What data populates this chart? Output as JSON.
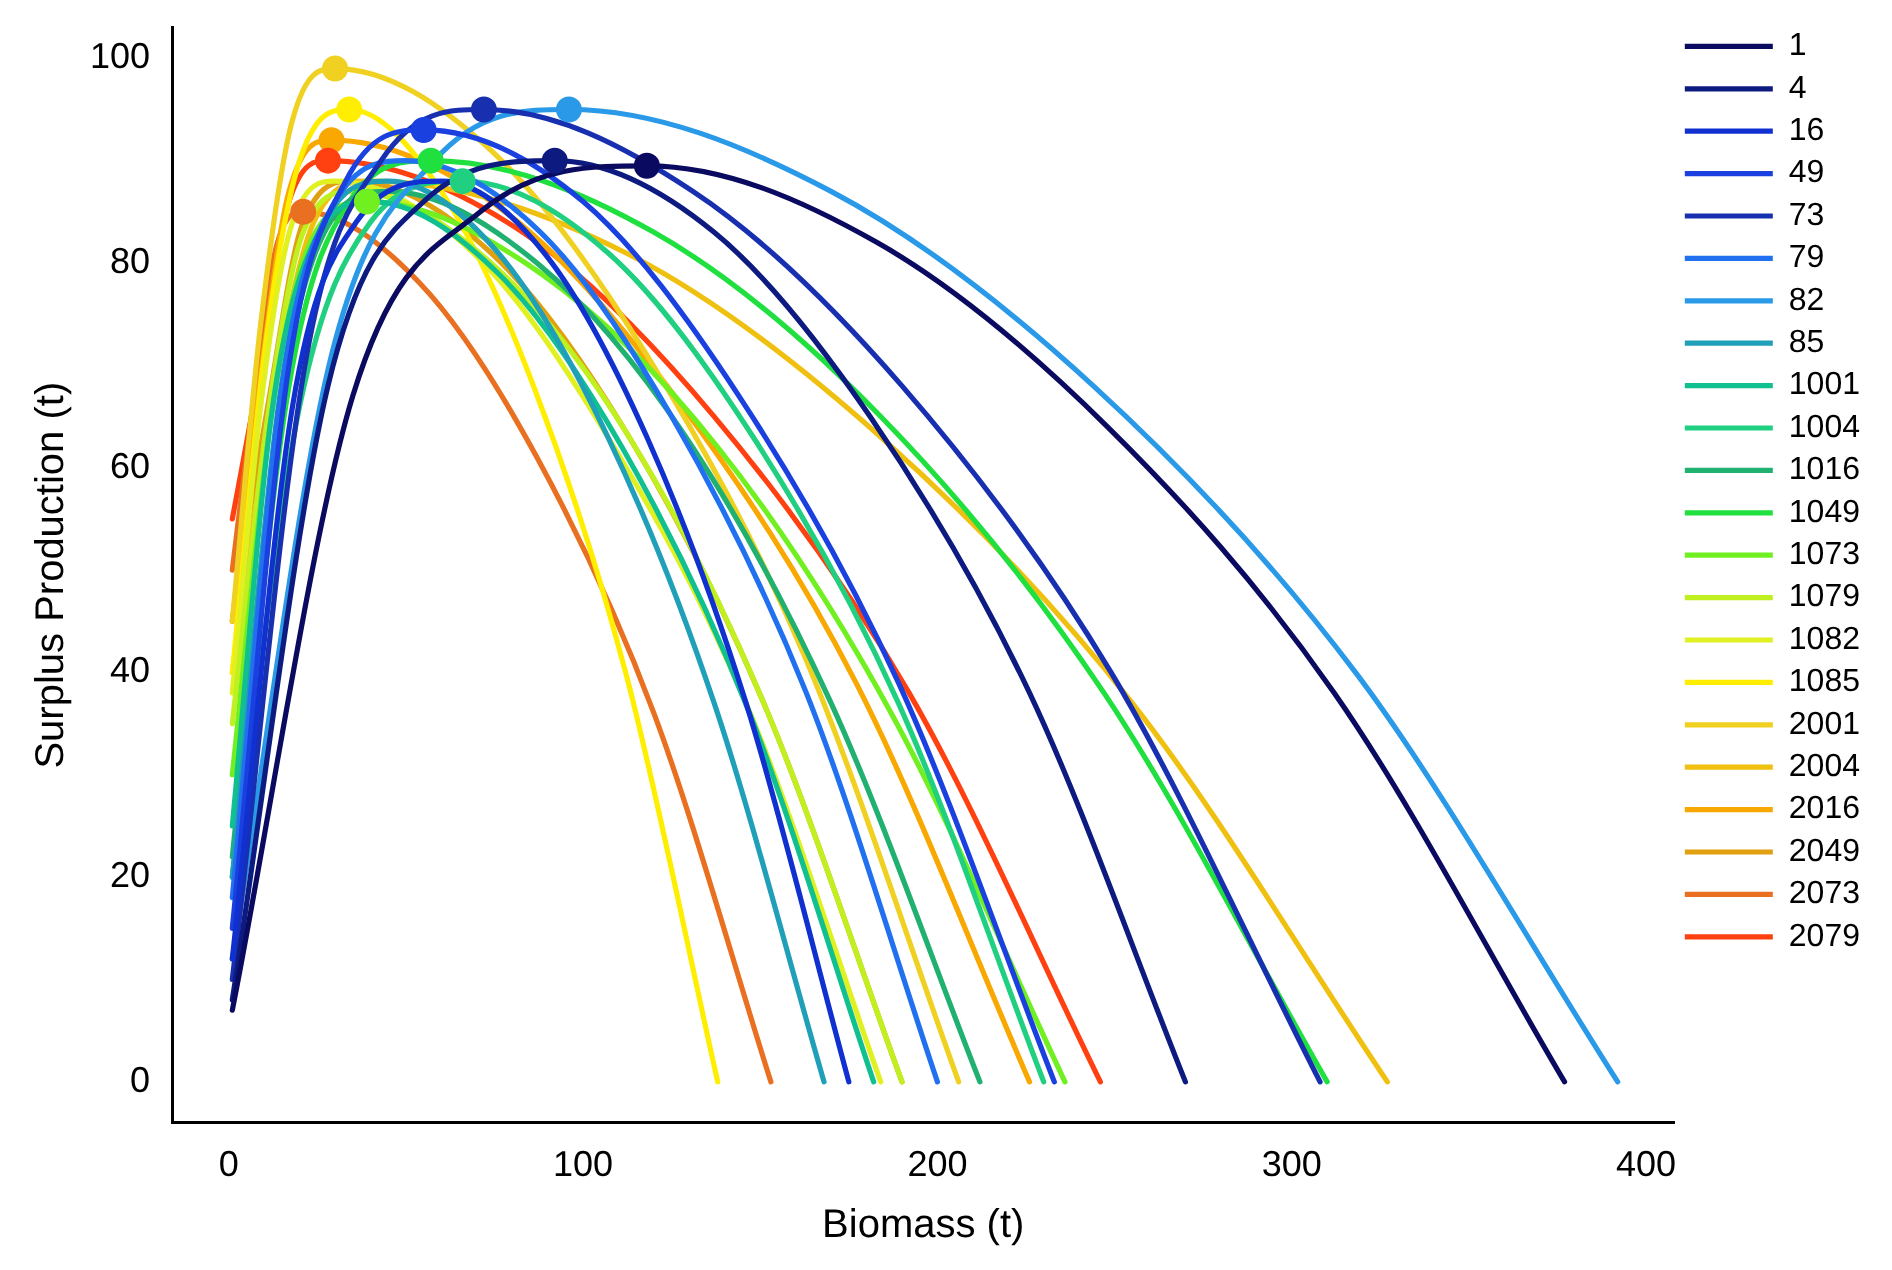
{
  "chart_data": {
    "type": "line",
    "xlabel": "Biomass (t)",
    "ylabel": "Surplus Production (t)",
    "xlim": [
      -16,
      408
    ],
    "ylim": [
      -4,
      103
    ],
    "xticks": [
      0,
      100,
      200,
      300,
      400
    ],
    "yticks": [
      0,
      20,
      40,
      60,
      80,
      100
    ],
    "grid": false,
    "legend": "right",
    "marker": "none",
    "line_style": "solid",
    "series": [
      {
        "name": "1",
        "color": "#0a0a60",
        "x": [
          1,
          35,
          71,
          118,
          183,
          248,
          312,
          377
        ],
        "values": [
          7,
          67,
          85,
          89.5,
          82,
          64,
          38,
          0
        ]
      },
      {
        "name": "4",
        "color": "#0d1a80",
        "x": [
          1,
          28,
          55,
          92,
          137,
          181,
          226,
          270
        ],
        "values": [
          8,
          68,
          86,
          90,
          83,
          65,
          38,
          0
        ]
      },
      {
        "name": "16",
        "color": "#1030d0",
        "x": [
          1,
          18,
          36,
          60,
          89,
          118,
          146,
          175
        ],
        "values": [
          12,
          66,
          84,
          88,
          81,
          63,
          37,
          0
        ]
      },
      {
        "name": "49",
        "color": "#1a40e0",
        "x": [
          1,
          17,
          33,
          55,
          100,
          144,
          189,
          233
        ],
        "values": [
          15,
          70,
          88,
          93,
          86,
          67,
          39,
          0
        ]
      },
      {
        "name": "73",
        "color": "#1830b0",
        "x": [
          1,
          22,
          43,
          72,
          131,
          190,
          249,
          308
        ],
        "values": [
          10,
          71,
          90,
          95,
          87,
          68,
          40,
          0
        ]
      },
      {
        "name": "79",
        "color": "#2070f0",
        "x": [
          1,
          15,
          30,
          50,
          88,
          125,
          163,
          200
        ],
        "values": [
          18,
          68,
          86,
          90,
          83,
          65,
          38,
          0
        ]
      },
      {
        "name": "82",
        "color": "#2a9ae8",
        "x": [
          1,
          29,
          58,
          96,
          170,
          244,
          318,
          392
        ],
        "values": [
          12,
          71,
          90,
          95,
          87,
          68,
          40,
          0
        ]
      },
      {
        "name": "85",
        "color": "#20a0b8",
        "x": [
          1,
          14,
          27,
          45,
          76,
          107,
          137,
          168
        ],
        "values": [
          20,
          66,
          84,
          88,
          81,
          63,
          37,
          0
        ]
      },
      {
        "name": "1001",
        "color": "#10c090",
        "x": [
          1,
          12,
          24,
          40,
          76,
          111,
          147,
          182
        ],
        "values": [
          25,
          65,
          82,
          86,
          79,
          62,
          36,
          0
        ]
      },
      {
        "name": "1004",
        "color": "#20d080",
        "x": [
          1,
          20,
          40,
          66,
          107,
          148,
          189,
          230
        ],
        "values": [
          20,
          66,
          84,
          88,
          81,
          63,
          37,
          0
        ]
      },
      {
        "name": "1016",
        "color": "#20b070",
        "x": [
          1,
          14,
          27,
          45,
          87,
          129,
          170,
          212
        ],
        "values": [
          22,
          65,
          83,
          87,
          80,
          63,
          37,
          0
        ]
      },
      {
        "name": "1049",
        "color": "#20e040",
        "x": [
          1,
          17,
          34,
          57,
          120,
          184,
          247,
          310
        ],
        "values": [
          20,
          68,
          86,
          90,
          83,
          65,
          38,
          0
        ]
      },
      {
        "name": "1073",
        "color": "#70f020",
        "x": [
          1,
          12,
          23,
          39,
          88,
          138,
          187,
          236
        ],
        "values": [
          30,
          65,
          82,
          86,
          79,
          62,
          36,
          0
        ]
      },
      {
        "name": "1079",
        "color": "#c0f020",
        "x": [
          1,
          11,
          21,
          35,
          74,
          113,
          151,
          190
        ],
        "values": [
          35,
          65,
          83,
          87,
          80,
          63,
          37,
          0
        ]
      },
      {
        "name": "1082",
        "color": "#e0f020",
        "x": [
          1,
          9,
          18,
          30,
          69,
          107,
          146,
          184
        ],
        "values": [
          38,
          66,
          84,
          88,
          81,
          63,
          37,
          0
        ]
      },
      {
        "name": "1085",
        "color": "#ffee00",
        "x": [
          1,
          10,
          20,
          34,
          60,
          86,
          112,
          138
        ],
        "values": [
          40,
          71,
          90,
          95,
          87,
          68,
          40,
          0
        ]
      },
      {
        "name": "2001",
        "color": "#f0d020",
        "x": [
          1,
          9,
          18,
          30,
          74,
          118,
          162,
          206
        ],
        "values": [
          45,
          74,
          94,
          99,
          91,
          71,
          42,
          0
        ]
      },
      {
        "name": "2004",
        "color": "#f0c010",
        "x": [
          1,
          12,
          24,
          40,
          112,
          184,
          255,
          327
        ],
        "values": [
          40,
          66,
          84,
          88,
          81,
          63,
          37,
          0
        ]
      },
      {
        "name": "2016",
        "color": "#f8a800",
        "x": [
          1,
          9,
          17,
          29,
          78,
          128,
          177,
          226
        ],
        "values": [
          45,
          69,
          87,
          92,
          85,
          66,
          39,
          0
        ]
      },
      {
        "name": "2049",
        "color": "#e0a010",
        "x": [
          1,
          11,
          21,
          35,
          74,
          113,
          151,
          190
        ],
        "values": [
          45,
          66,
          84,
          88,
          81,
          63,
          37,
          0
        ]
      },
      {
        "name": "2073",
        "color": "#e87020",
        "x": [
          1,
          6,
          13,
          21,
          54,
          87,
          120,
          153
        ],
        "values": [
          50,
          64,
          81,
          85,
          78,
          61,
          36,
          0
        ]
      },
      {
        "name": "2079",
        "color": "#ff4010",
        "x": [
          1,
          8,
          17,
          28,
          83,
          137,
          192,
          246
        ],
        "values": [
          55,
          68,
          86,
          90,
          83,
          65,
          38,
          0
        ]
      },
      {
        "type": "scatter",
        "marker": "circle",
        "x": [
          118,
          92,
          72,
          55,
          96,
          57,
          39,
          66,
          34,
          30,
          29,
          21,
          28
        ],
        "values": [
          89.5,
          90,
          95,
          93,
          95,
          90,
          86,
          88,
          95,
          99,
          92,
          85,
          90
        ],
        "colors": [
          "#0a0a60",
          "#0d1a80",
          "#1830b0",
          "#1a40e0",
          "#2a9ae8",
          "#20e040",
          "#70f020",
          "#20d080",
          "#ffee00",
          "#f0d020",
          "#f8a800",
          "#e87020",
          "#ff4010"
        ]
      }
    ]
  }
}
